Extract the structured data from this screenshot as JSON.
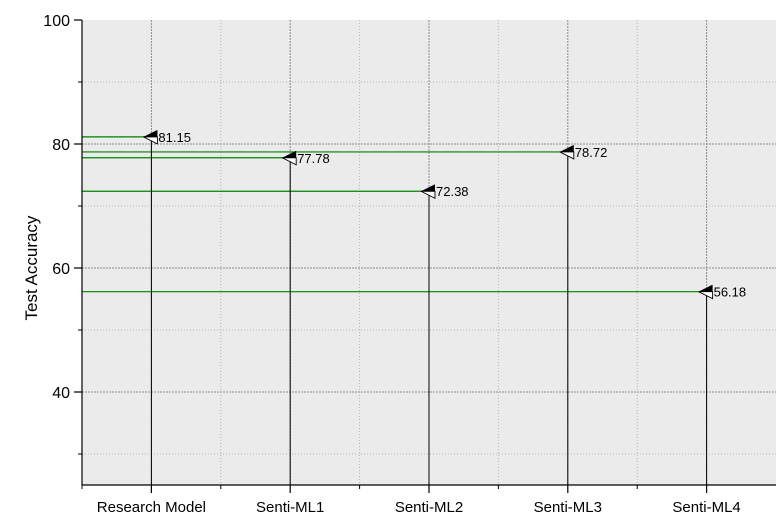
{
  "chart_data": {
    "type": "lollipop",
    "categories": [
      "Research Model",
      "Senti-ML1",
      "Senti-ML2",
      "Senti-ML3",
      "Senti-ML4"
    ],
    "values": [
      81.15,
      77.78,
      72.38,
      78.72,
      56.18
    ],
    "data_labels": [
      "81.15",
      "77.78",
      "72.38",
      "78.72",
      "56.18"
    ],
    "title": "",
    "xlabel": "",
    "ylabel": "Test Accuracy",
    "ylim": [
      25,
      100
    ],
    "yticks": [
      40,
      60,
      80,
      100
    ],
    "ytick_labels": [
      "40",
      "60",
      "80",
      "100"
    ],
    "grid": true,
    "legend": "none",
    "colors": {
      "plot_background": "#ebebeb",
      "reference_line": "#008000",
      "stem": "#000000",
      "grid": "#9a9a9a"
    }
  }
}
